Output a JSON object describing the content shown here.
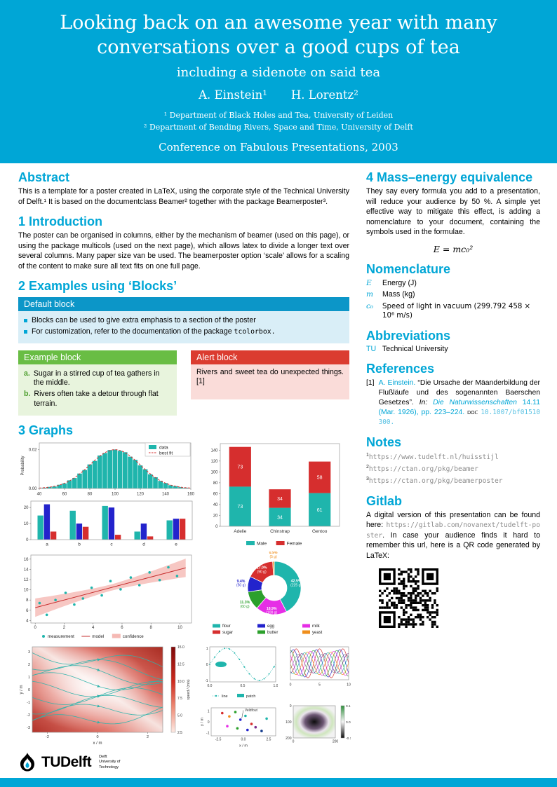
{
  "colors": {
    "tu_cyan": "#00A6D6",
    "block_blue": "#0C96C8",
    "block_blue_bg": "#D9EEF7",
    "block_green": "#69BD44",
    "block_green_bg": "#E8F4DD",
    "block_red": "#DB3C30",
    "block_red_bg": "#FADCD9",
    "chart_teal": "#1FB5AC",
    "chart_red": "#D62E2E",
    "chart_blue": "#2323CC",
    "chart_green": "#2CA02C",
    "chart_magenta": "#E62EE6",
    "chart_orange": "#EF8E1B"
  },
  "header": {
    "title_line1": "Looking back on an awesome year with many",
    "title_line2": "conversations over a good cups of tea",
    "subtitle": "including a sidenote on said tea",
    "author1": "A. Einstein¹",
    "author2": "H. Lorentz²",
    "affiliation1": "¹ Department of Black Holes and Tea, University of Leiden",
    "affiliation2": "² Department of Bending Rivers, Space and Time, University of Delft",
    "conference": "Conference on Fabulous Presentations, 2003"
  },
  "left": {
    "abstract": {
      "heading": "Abstract",
      "text": "This is a template for a poster created in LaTeX, using the corporate style of the Technical University of Delft.¹ It is based on the documentclass Beamer² together with the package Beamerposter³."
    },
    "introduction": {
      "heading": "1 Introduction",
      "text": "The poster can be organised in columns, either by the mechanism of beamer (used on this page), or using the package multicols (used on the next page), which allows latex to divide a longer text over several columns. Many paper size van be used. The beamerposter option ‘scale’ allows for a scaling of the content to make sure all text fits on one full page."
    },
    "blocks_heading": "2 Examples using ‘Blocks’",
    "default_block": {
      "title": "Default block",
      "item1": "Blocks can be used to give extra emphasis to a section of the poster",
      "item2_text": "For customization, refer to the documentation of the package ",
      "item2_code": "tcolorbox."
    },
    "example_block": {
      "title": "Example block",
      "items": [
        {
          "label": "a.",
          "text": "Sugar in a stirred cup of tea gathers in the middle."
        },
        {
          "label": "b.",
          "text": "Rivers often take a detour through flat terrain."
        }
      ]
    },
    "alert_block": {
      "title": "Alert block",
      "text": "Rivers and sweet tea do unexpected things.[1]"
    },
    "graphs_heading": "3 Graphs"
  },
  "right": {
    "sec4_heading": "4 Mass–energy equivalence",
    "sec4_text": "They say every formula you add to a presentation, will reduce your audience by 50 %. A simple yet effective way to mitigate this effect, is adding a nomenclature to your document, containing the symbols used in the formulae.",
    "formula": "E = mc₀²",
    "nomenclature": {
      "heading": "Nomenclature",
      "rows": [
        {
          "symbol": "E",
          "desc": "Energy (J)"
        },
        {
          "symbol": "m",
          "desc": "Mass (kg)"
        },
        {
          "symbol": "c₀",
          "desc": "Speed of light in vacuum (299.792 458 × 10⁶ m/s)"
        }
      ]
    },
    "abbreviations": {
      "heading": "Abbreviations",
      "rows": [
        {
          "abbr": "TU",
          "desc": "Technical University"
        }
      ]
    },
    "references": {
      "heading": "References",
      "index": "[1]",
      "author": "A. Einstein.",
      "title": "“Die Ursache der Mäanderbildung der Flußläufe und des sogenannten Baerschen Gesetzes”.",
      "in_label": "In:",
      "journal": "Die Naturwissenschaften",
      "detail": "14.11 (Mar. 1926), pp. 223–224.",
      "doi_label": "doi:",
      "doi": "10.1007/bf01510300."
    },
    "notes": {
      "heading": "Notes",
      "items": [
        {
          "sup": "1",
          "url": "https://www.tudelft.nl/huisstijl"
        },
        {
          "sup": "2",
          "url": "https://ctan.org/pkg/beamer"
        },
        {
          "sup": "3",
          "url": "https://ctan.org/pkg/beamerposter"
        }
      ]
    },
    "gitlab": {
      "heading": "Gitlab",
      "text1": "A digital version of this presentation can be found here: ",
      "url": "https://gitlab.com/novanext/tudelft-poster",
      "text2": ". In case your audience finds it hard to remember this url, here is a QR code generated by LaTeX:"
    }
  },
  "footer": {
    "logo_tu": "TU",
    "logo_delft": "Delft",
    "sub1": "Delft",
    "sub2": "University of",
    "sub3": "Technology"
  },
  "chart_data": [
    {
      "id": "hist-fit",
      "type": "histogram",
      "ylabel": "Probability",
      "legend": [
        "data",
        "best fit"
      ],
      "bar_color": "#1FB5AC",
      "fit_color": "#D62E2E",
      "xlim": [
        40,
        160
      ],
      "ylim": [
        0,
        0.0235
      ],
      "x_ticks": [
        40,
        60,
        80,
        100,
        120,
        140,
        160
      ],
      "y_ticks": [
        0,
        0.02
      ],
      "bin_start": 42,
      "bin_width": 4,
      "bin_values": [
        0.0004,
        0.0008,
        0.001,
        0.0019,
        0.0026,
        0.0042,
        0.0054,
        0.0077,
        0.0095,
        0.0124,
        0.0142,
        0.017,
        0.0183,
        0.0198,
        0.0201,
        0.0194,
        0.0187,
        0.0164,
        0.0148,
        0.0119,
        0.0099,
        0.0073,
        0.0058,
        0.0039,
        0.0028,
        0.0017,
        0.0012,
        0.0007,
        0.0004
      ],
      "fit": {
        "mean": 100,
        "sd": 20,
        "peak": 0.02
      }
    },
    {
      "id": "grouped-bars",
      "type": "grouped_bar",
      "categories": [
        "a",
        "b",
        "c",
        "d",
        "e"
      ],
      "series": [
        {
          "color": "#1FB5AC",
          "values": [
            15,
            18,
            21,
            5,
            12
          ]
        },
        {
          "color": "#2323CC",
          "values": [
            22,
            10,
            20,
            10,
            13
          ]
        },
        {
          "color": "#D62E2E",
          "values": [
            5,
            8,
            3,
            2,
            13
          ]
        }
      ],
      "y_ticks": [
        0,
        10,
        20
      ],
      "ylim": [
        0,
        24
      ]
    },
    {
      "id": "stacked-bars",
      "type": "stacked_bar",
      "categories": [
        "Adelie",
        "Chinstrap",
        "Gentoo"
      ],
      "series": [
        {
          "name": "Male",
          "color": "#1FB5AC",
          "values": [
            73,
            34,
            61
          ]
        },
        {
          "name": "Female",
          "color": "#D62E2E",
          "values": [
            73,
            34,
            58
          ]
        }
      ],
      "y_ticks": [
        0,
        20,
        40,
        60,
        80,
        100,
        120,
        140
      ],
      "ylim": [
        0,
        152
      ]
    },
    {
      "id": "scatter-fit",
      "type": "scatter_fit",
      "legend": [
        "measurement",
        "model",
        "confidence"
      ],
      "point_color": "#1FB5AC",
      "line_color": "#C62F2F",
      "band_color": "#F5B9B4",
      "xlim": [
        -0.3,
        10.8
      ],
      "ylim": [
        3.5,
        16.8
      ],
      "x_ticks": [
        0,
        2,
        4,
        6,
        8,
        10
      ],
      "y_ticks": [
        4,
        6,
        8,
        10,
        12,
        14,
        16
      ],
      "points": [
        [
          0.3,
          7.4
        ],
        [
          0.8,
          5.1
        ],
        [
          1.4,
          8.0
        ],
        [
          2.1,
          9.4
        ],
        [
          2.7,
          7.1
        ],
        [
          3.3,
          8.3
        ],
        [
          3.9,
          10.4
        ],
        [
          4.6,
          8.9
        ],
        [
          5.2,
          11.7
        ],
        [
          5.9,
          10.1
        ],
        [
          6.6,
          12.4
        ],
        [
          7.2,
          10.9
        ],
        [
          7.9,
          13.4
        ],
        [
          8.6,
          11.9
        ],
        [
          9.2,
          14.4
        ],
        [
          9.8,
          12.7
        ]
      ],
      "line": {
        "x0": 0,
        "y0": 6.5,
        "x1": 10.4,
        "y1": 14.3
      },
      "band": {
        "start": 1.8,
        "mid": 0.6
      }
    },
    {
      "id": "donut",
      "type": "donut",
      "draw_order": [
        0,
        4,
        3,
        2,
        1,
        5
      ],
      "slices": [
        {
          "label": "flour",
          "grams": 225,
          "pct": "42.5%",
          "color": "#1FB5AC"
        },
        {
          "label": "sugar",
          "grams": 90,
          "pct": "17.0%",
          "color": "#D62E2E"
        },
        {
          "label": "egg",
          "grams": 50,
          "pct": "9.4%",
          "color": "#2323CC"
        },
        {
          "label": "butter",
          "grams": 60,
          "pct": "11.3%",
          "color": "#2CA02C"
        },
        {
          "label": "milk",
          "grams": 100,
          "pct": "18.9%",
          "color": "#E62EE6"
        },
        {
          "label": "yeast",
          "grams": 5,
          "pct": "0.9%",
          "color": "#EF8E1B"
        }
      ]
    },
    {
      "id": "stream",
      "type": "stream",
      "xlabel": "x / m",
      "ylabel": "y / m",
      "x_ticks": [
        -2,
        0,
        2
      ],
      "y_ticks": [
        -3,
        -2,
        -1,
        0,
        1,
        2,
        3
      ],
      "line_color": "#2FB3AB",
      "colorbar_label": "speed / (m/s)",
      "colorbar_ticks": [
        15.0,
        12.5,
        10.0,
        7.5,
        5.0,
        2.5
      ]
    },
    {
      "id": "sine",
      "type": "sine",
      "legend": [
        "line",
        "patch"
      ],
      "line_color": "#1FB5AC",
      "patch_color": "#1FB5AC",
      "x_ticks": [
        0,
        0.5,
        1
      ],
      "y_ticks": [
        -1,
        0,
        1
      ]
    },
    {
      "id": "multilines",
      "type": "multilines",
      "x_ticks": [
        0,
        5,
        10
      ],
      "line_colors": [
        "#D62E2E",
        "#2323CC",
        "#2CA02C",
        "#E62EE6",
        "#EF8E1B",
        "#1FB5AC",
        "#7B2D8E",
        "#808080"
      ]
    },
    {
      "id": "scatter-mini",
      "type": "scatter_mini",
      "xlabel": "x / m",
      "ylabel": "y / m",
      "annotation": "Veldfout",
      "x_ticks": [
        -2.5,
        0,
        2.5
      ],
      "y_ticks": [
        -1,
        0,
        1
      ],
      "points": [
        [
          -2.1,
          0.8,
          "#D62E2E"
        ],
        [
          -1.4,
          0.5,
          "#EF8E1B"
        ],
        [
          -0.8,
          0.9,
          "#2CA02C"
        ],
        [
          -0.3,
          0.2,
          "#2323CC"
        ],
        [
          0.2,
          0.55,
          "#1FB5AC"
        ],
        [
          0.8,
          -0.2,
          "#D62E2E"
        ],
        [
          -1.6,
          -0.4,
          "#E62EE6"
        ],
        [
          -0.6,
          -0.6,
          "#2CA02C"
        ],
        [
          0.4,
          -0.75,
          "#2323CC"
        ],
        [
          1.2,
          -0.5,
          "#7B2D8E"
        ],
        [
          1.8,
          -0.85,
          "#123A8C"
        ],
        [
          2.3,
          0.3,
          "#1FB5AC"
        ]
      ]
    },
    {
      "id": "heatmap",
      "type": "heatmap",
      "x_ticks": [
        0,
        200
      ],
      "y_ticks": [
        0,
        100,
        200
      ],
      "colorbar_ticks": [
        0.1,
        0,
        -0.1
      ]
    }
  ]
}
